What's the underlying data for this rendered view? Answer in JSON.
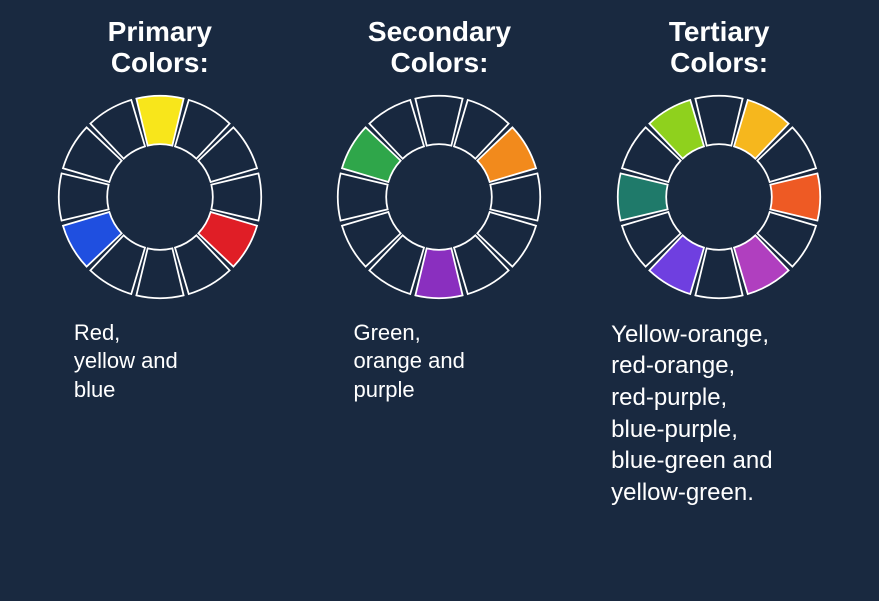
{
  "background_color": "#192940",
  "text_color": "#ffffff",
  "wheel": {
    "segments": 12,
    "stroke": "#ffffff",
    "stroke_width": 1.6,
    "inner_radius": 48,
    "outer_radius": 92,
    "gap_deg": 3,
    "empty_fill": "#18283f"
  },
  "columns": [
    {
      "title": "Primary\nColors:",
      "desc": "Red,\nyellow and\nblue",
      "desc_class": "desc-small",
      "fill": {
        "0": "#f8e61b",
        "4": "#e01e26",
        "8": "#1f4fe0"
      }
    },
    {
      "title": "Secondary\nColors:",
      "desc": "Green,\norange and\npurple",
      "desc_class": "desc-small",
      "fill": {
        "2": "#f28a1c",
        "6": "#8a2fbf",
        "10": "#2fa64a"
      }
    },
    {
      "title": "Tertiary\nColors:",
      "desc": "Yellow-orange,\nred-orange,\nred-purple,\nblue-purple,\nblue-green and\nyellow-green.",
      "desc_class": "desc-large",
      "fill": {
        "1": "#f6b71d",
        "3": "#ee5a24",
        "5": "#b03fbf",
        "7": "#6f3fe0",
        "9": "#1f7a6a",
        "11": "#8fd11d"
      }
    }
  ]
}
